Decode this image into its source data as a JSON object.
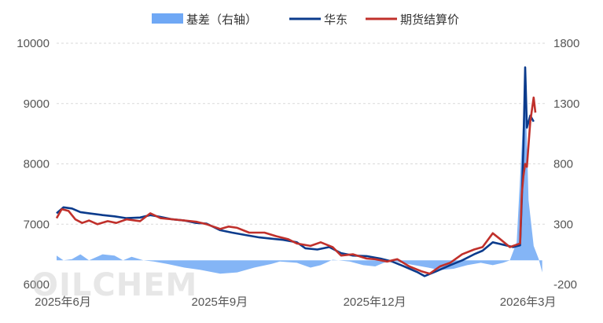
{
  "watermark": "OILCHEM",
  "colors": {
    "basis": "#6fa8f5",
    "huadong": "#0b3b8c",
    "futures": "#c0302b",
    "grid": "#d9d9d9",
    "tick": "#555555"
  },
  "chart_data": {
    "type": "line",
    "legend": {
      "position": "top-center",
      "items": [
        "基差（右轴）",
        "华东",
        "期货结算价"
      ]
    },
    "grid": true,
    "x_ticks": [
      "2025年6月",
      "2025年9月",
      "2025年12月",
      "2026年3月"
    ],
    "x_range": [
      "2025-06-01",
      "2026-03-15"
    ],
    "y_left": {
      "lim": [
        6000,
        10000
      ],
      "ticks": [
        6000,
        7000,
        8000,
        9000,
        10000
      ]
    },
    "y_right": {
      "lim": [
        -200,
        1800
      ],
      "ticks": [
        -200,
        300,
        800,
        1300,
        1800
      ]
    },
    "series": [
      {
        "name": "基差（右轴）",
        "type": "area",
        "axis": "right",
        "points": [
          [
            "2025-06-01",
            40
          ],
          [
            "2025-06-05",
            0
          ],
          [
            "2025-06-10",
            10
          ],
          [
            "2025-06-15",
            50
          ],
          [
            "2025-06-20",
            0
          ],
          [
            "2025-06-28",
            50
          ],
          [
            "2025-07-05",
            40
          ],
          [
            "2025-07-10",
            0
          ],
          [
            "2025-07-15",
            30
          ],
          [
            "2025-07-22",
            0
          ],
          [
            "2025-07-28",
            -10
          ],
          [
            "2025-08-05",
            -30
          ],
          [
            "2025-08-15",
            -60
          ],
          [
            "2025-08-25",
            -80
          ],
          [
            "2025-09-05",
            -110
          ],
          [
            "2025-09-15",
            -100
          ],
          [
            "2025-09-25",
            -60
          ],
          [
            "2025-10-05",
            -30
          ],
          [
            "2025-10-10",
            -10
          ],
          [
            "2025-10-20",
            -20
          ],
          [
            "2025-10-28",
            -60
          ],
          [
            "2025-11-03",
            -40
          ],
          [
            "2025-11-10",
            5
          ],
          [
            "2025-11-20",
            -10
          ],
          [
            "2025-11-28",
            -40
          ],
          [
            "2025-12-05",
            -50
          ],
          [
            "2025-12-10",
            -20
          ],
          [
            "2025-12-15",
            0
          ],
          [
            "2025-12-20",
            -20
          ],
          [
            "2025-12-28",
            -40
          ],
          [
            "2026-01-05",
            -60
          ],
          [
            "2026-01-12",
            -80
          ],
          [
            "2026-01-20",
            -70
          ],
          [
            "2026-01-28",
            -40
          ],
          [
            "2026-02-05",
            -20
          ],
          [
            "2026-02-12",
            -40
          ],
          [
            "2026-02-18",
            -20
          ],
          [
            "2026-02-22",
            0
          ],
          [
            "2026-02-26",
            150
          ],
          [
            "2026-03-01",
            950
          ],
          [
            "2026-03-03",
            1500
          ],
          [
            "2026-03-05",
            500
          ],
          [
            "2026-03-08",
            120
          ],
          [
            "2026-03-11",
            10
          ],
          [
            "2026-03-13",
            -100
          ]
        ]
      },
      {
        "name": "华东",
        "type": "line",
        "axis": "left",
        "points": [
          [
            "2025-06-01",
            7180
          ],
          [
            "2025-06-05",
            7280
          ],
          [
            "2025-06-10",
            7260
          ],
          [
            "2025-06-15",
            7200
          ],
          [
            "2025-06-20",
            7180
          ],
          [
            "2025-06-28",
            7150
          ],
          [
            "2025-07-05",
            7130
          ],
          [
            "2025-07-12",
            7100
          ],
          [
            "2025-07-20",
            7110
          ],
          [
            "2025-07-26",
            7150
          ],
          [
            "2025-08-01",
            7120
          ],
          [
            "2025-08-08",
            7080
          ],
          [
            "2025-08-15",
            7060
          ],
          [
            "2025-08-22",
            7020
          ],
          [
            "2025-08-28",
            7010
          ],
          [
            "2025-09-05",
            6900
          ],
          [
            "2025-09-12",
            6860
          ],
          [
            "2025-09-20",
            6820
          ],
          [
            "2025-09-28",
            6780
          ],
          [
            "2025-10-05",
            6760
          ],
          [
            "2025-10-12",
            6740
          ],
          [
            "2025-10-20",
            6700
          ],
          [
            "2025-10-25",
            6600
          ],
          [
            "2025-11-01",
            6580
          ],
          [
            "2025-11-08",
            6620
          ],
          [
            "2025-11-15",
            6520
          ],
          [
            "2025-11-22",
            6480
          ],
          [
            "2025-11-30",
            6470
          ],
          [
            "2025-12-08",
            6430
          ],
          [
            "2025-12-15",
            6380
          ],
          [
            "2025-12-22",
            6300
          ],
          [
            "2025-12-30",
            6200
          ],
          [
            "2026-01-03",
            6140
          ],
          [
            "2026-01-10",
            6220
          ],
          [
            "2026-01-18",
            6320
          ],
          [
            "2026-01-25",
            6400
          ],
          [
            "2026-02-01",
            6500
          ],
          [
            "2026-02-06",
            6560
          ],
          [
            "2026-02-12",
            6700
          ],
          [
            "2026-02-18",
            6660
          ],
          [
            "2026-02-24",
            6620
          ],
          [
            "2026-02-28",
            6650
          ],
          [
            "2026-03-01",
            7400
          ],
          [
            "2026-03-02",
            8300
          ],
          [
            "2026-03-03",
            9600
          ],
          [
            "2026-03-04",
            8600
          ],
          [
            "2026-03-06",
            8800
          ],
          [
            "2026-03-08",
            8700
          ]
        ]
      },
      {
        "name": "期货结算价",
        "type": "line",
        "axis": "left",
        "points": [
          [
            "2025-06-01",
            7100
          ],
          [
            "2025-06-04",
            7250
          ],
          [
            "2025-06-08",
            7220
          ],
          [
            "2025-06-12",
            7080
          ],
          [
            "2025-06-16",
            7020
          ],
          [
            "2025-06-20",
            7060
          ],
          [
            "2025-06-25",
            7000
          ],
          [
            "2025-07-01",
            7050
          ],
          [
            "2025-07-06",
            7020
          ],
          [
            "2025-07-12",
            7080
          ],
          [
            "2025-07-20",
            7050
          ],
          [
            "2025-07-26",
            7180
          ],
          [
            "2025-08-01",
            7100
          ],
          [
            "2025-08-08",
            7080
          ],
          [
            "2025-08-15",
            7060
          ],
          [
            "2025-08-22",
            7040
          ],
          [
            "2025-08-28",
            7000
          ],
          [
            "2025-09-05",
            6920
          ],
          [
            "2025-09-10",
            6960
          ],
          [
            "2025-09-15",
            6940
          ],
          [
            "2025-09-22",
            6860
          ],
          [
            "2025-10-01",
            6860
          ],
          [
            "2025-10-08",
            6800
          ],
          [
            "2025-10-15",
            6750
          ],
          [
            "2025-10-20",
            6680
          ],
          [
            "2025-10-28",
            6640
          ],
          [
            "2025-11-03",
            6700
          ],
          [
            "2025-11-10",
            6620
          ],
          [
            "2025-11-15",
            6480
          ],
          [
            "2025-11-22",
            6500
          ],
          [
            "2025-11-30",
            6430
          ],
          [
            "2025-12-05",
            6420
          ],
          [
            "2025-12-12",
            6380
          ],
          [
            "2025-12-18",
            6420
          ],
          [
            "2025-12-25",
            6300
          ],
          [
            "2026-01-01",
            6220
          ],
          [
            "2026-01-06",
            6180
          ],
          [
            "2026-01-12",
            6300
          ],
          [
            "2026-01-18",
            6360
          ],
          [
            "2026-01-25",
            6500
          ],
          [
            "2026-02-01",
            6580
          ],
          [
            "2026-02-06",
            6620
          ],
          [
            "2026-02-12",
            6850
          ],
          [
            "2026-02-16",
            6760
          ],
          [
            "2026-02-22",
            6620
          ],
          [
            "2026-02-28",
            6680
          ],
          [
            "2026-03-01",
            7500
          ],
          [
            "2026-03-02",
            7800
          ],
          [
            "2026-03-03",
            8000
          ],
          [
            "2026-03-04",
            7950
          ],
          [
            "2026-03-06",
            8700
          ],
          [
            "2026-03-08",
            9100
          ],
          [
            "2026-03-09",
            8850
          ]
        ]
      }
    ]
  }
}
